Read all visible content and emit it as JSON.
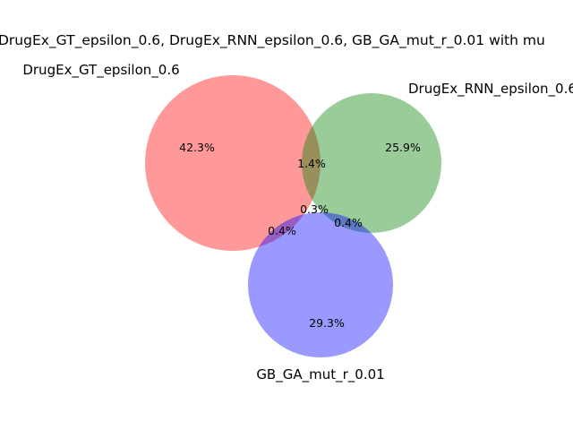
{
  "title": "DrugEx_GT_epsilon_0.6, DrugEx_RNN_epsilon_0.6, GB_GA_mut_r_0.01 with mu",
  "sets": [
    {
      "name": "DrugEx_GT_epsilon_0.6",
      "color": "#ff0000"
    },
    {
      "name": "DrugEx_RNN_epsilon_0.6",
      "color": "#008000"
    },
    {
      "name": "GB_GA_mut_r_0.01",
      "color": "#0000ff"
    }
  ],
  "regions": {
    "a_only": "42.3%",
    "b_only": "25.9%",
    "c_only": "29.3%",
    "ab": "1.4%",
    "ac": "0.4%",
    "bc": "0.4%",
    "abc": "0.3%"
  }
}
